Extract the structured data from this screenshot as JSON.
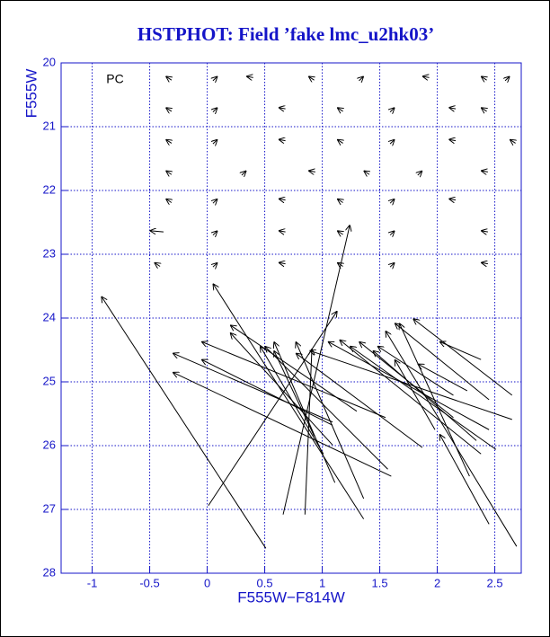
{
  "chart_data": {
    "type": "vector",
    "title": "HSTPHOT: Field ’fake lmc_u2hk03’",
    "annotation": "PC",
    "x_label": "F555W−F814W",
    "y_label": "F555W",
    "xlim": [
      -1.27,
      2.73
    ],
    "ylim": [
      28,
      20
    ],
    "xticks": [
      -1,
      -0.5,
      0,
      0.5,
      1,
      1.5,
      2,
      2.5
    ],
    "yticks": [
      20,
      21,
      22,
      23,
      24,
      25,
      26,
      27,
      28
    ],
    "grid": true,
    "grid_color": "#1515c8",
    "color": "#000000",
    "title_color": "#1515c8",
    "x0": [
      1.09,
      1.6,
      1.09,
      1.55,
      1.3,
      1.09,
      1.01,
      1.57,
      0.93,
      1.11,
      1.36,
      1.87,
      2.65,
      2.45,
      2.38,
      2.14,
      2.51,
      2.14,
      2.34,
      2.45,
      2.38,
      2.65,
      2.26,
      1.98,
      0.51,
      0.01,
      0.66,
      0.85,
      1.36,
      2.69,
      2.45,
      2.28,
      -0.31,
      0.05,
      0.4,
      0.93,
      1.32,
      1.93,
      2.43,
      2.59,
      -0.31,
      0.05,
      0.68,
      1.18,
      1.59,
      2.16,
      2.43,
      -0.31,
      0.05,
      0.68,
      1.18,
      1.59,
      2.16,
      2.68,
      -0.31,
      0.3,
      0.94,
      1.41,
      1.83,
      2.44,
      -0.31,
      0.05,
      0.68,
      1.18,
      1.59,
      2.16,
      -0.38,
      0.05,
      0.68,
      1.18,
      1.59,
      2.44,
      -0.41,
      0.05,
      0.68,
      1.18,
      1.59,
      2.44
    ],
    "y0": [
      25.63,
      26.48,
      25.68,
      25.56,
      25.46,
      25.99,
      26.13,
      26.37,
      25.85,
      26.58,
      26.83,
      26.03,
      25.59,
      25.75,
      26.13,
      25.21,
      26.06,
      25.56,
      25.92,
      25.28,
      24.65,
      25.21,
      25.14,
      25.75,
      27.61,
      26.94,
      27.08,
      27.08,
      27.15,
      27.58,
      27.23,
      26.48,
      20.27,
      20.28,
      20.23,
      20.27,
      20.28,
      20.23,
      20.27,
      20.28,
      20.76,
      20.77,
      20.72,
      20.76,
      20.77,
      20.72,
      20.76,
      21.26,
      21.27,
      21.22,
      21.26,
      21.27,
      21.22,
      21.26,
      21.75,
      21.76,
      21.71,
      21.75,
      21.76,
      21.71,
      22.19,
      22.2,
      22.15,
      22.19,
      22.2,
      22.15,
      22.65,
      22.7,
      22.65,
      22.69,
      22.7,
      22.65,
      23.19,
      23.2,
      23.15,
      23.19,
      23.2,
      23.15
    ],
    "x1": [
      -0.3,
      -0.3,
      -0.05,
      -0.05,
      0.2,
      0.2,
      0.46,
      0.5,
      0.58,
      0.58,
      0.77,
      0.77,
      0.89,
      1.05,
      1.15,
      1.48,
      1.24,
      1.32,
      1.44,
      1.63,
      2.02,
      1.79,
      1.83,
      1.63,
      -0.92,
      1.13,
      1.24,
      0.91,
      0.05,
      1.55,
      2.02,
      1.67,
      -0.36,
      0.09,
      0.34,
      0.88,
      1.36,
      1.87,
      2.38,
      2.63,
      -0.36,
      0.09,
      0.62,
      1.13,
      1.63,
      2.1,
      2.38,
      -0.36,
      0.09,
      0.62,
      1.13,
      1.63,
      2.1,
      2.63,
      -0.36,
      0.34,
      0.88,
      1.36,
      1.87,
      2.38,
      -0.36,
      0.09,
      0.62,
      1.13,
      1.63,
      2.1,
      -0.5,
      0.09,
      0.62,
      1.13,
      1.63,
      2.38,
      -0.46,
      0.09,
      0.62,
      1.13,
      1.63,
      2.38
    ],
    "y1": [
      24.55,
      24.85,
      24.65,
      24.37,
      24.11,
      24.23,
      24.44,
      24.44,
      24.51,
      24.37,
      24.37,
      24.55,
      24.51,
      24.37,
      24.34,
      24.44,
      24.44,
      24.37,
      24.51,
      24.08,
      24.37,
      24.01,
      24.72,
      24.65,
      23.66,
      23.89,
      22.54,
      24.48,
      23.46,
      24.2,
      25.82,
      24.08,
      20.21,
      20.21,
      20.21,
      20.21,
      20.21,
      20.21,
      20.21,
      20.21,
      20.7,
      20.7,
      20.7,
      20.7,
      20.7,
      20.7,
      20.7,
      21.2,
      21.2,
      21.2,
      21.2,
      21.2,
      21.2,
      21.2,
      21.69,
      21.69,
      21.69,
      21.69,
      21.69,
      21.69,
      22.13,
      22.13,
      22.13,
      22.13,
      22.13,
      22.13,
      22.63,
      22.63,
      22.63,
      22.63,
      22.63,
      22.63,
      23.13,
      23.13,
      23.13,
      23.13,
      23.13,
      23.13
    ]
  }
}
